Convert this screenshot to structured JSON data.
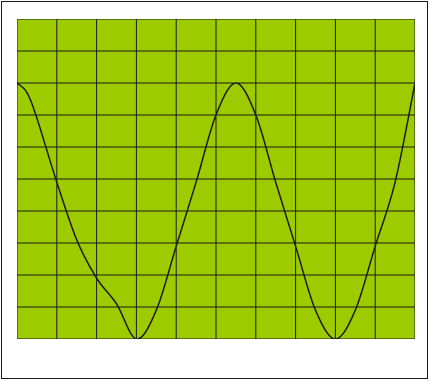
{
  "chart_data": {
    "type": "line",
    "title": "",
    "xlabel": "",
    "ylabel": "",
    "grid": true,
    "divisions": {
      "x": 10,
      "y": 10
    },
    "xlim": [
      0,
      10
    ],
    "ylim": [
      0,
      10
    ],
    "colors": {
      "screen": "#9ccc00",
      "grid": "#1a1a1a",
      "trace": "#1a1a1a"
    },
    "series": [
      {
        "x": [
          0,
          0.25,
          0.5,
          1,
          1.5,
          2,
          2.5,
          3,
          3.5,
          4,
          4.5,
          5,
          5.5,
          6,
          6.5,
          7,
          7.5,
          8,
          8.5,
          9,
          9.5,
          10
        ],
        "y": [
          8.0,
          7.7,
          6.9,
          4.9,
          3.1,
          1.9,
          1.1,
          0.0,
          0.9,
          2.9,
          4.9,
          7.0,
          8.0,
          7.0,
          4.9,
          2.9,
          0.9,
          0.0,
          0.9,
          2.9,
          4.9,
          8.0
        ]
      }
    ]
  }
}
